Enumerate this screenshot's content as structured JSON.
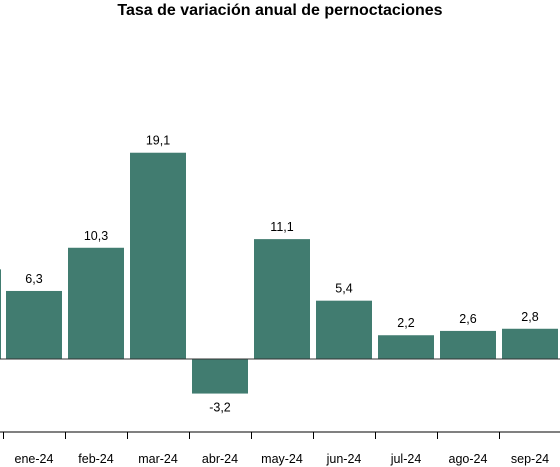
{
  "chart_data": {
    "type": "bar",
    "title": "Tasa de variación anual de pernoctaciones",
    "categories": [
      "ene-24",
      "feb-24",
      "mar-24",
      "abr-24",
      "may-24",
      "jun-24",
      "jul-24",
      "ago-24",
      "sep-24"
    ],
    "values": [
      6.3,
      10.3,
      19.1,
      -3.2,
      11.1,
      5.4,
      2.2,
      2.6,
      2.8
    ],
    "value_labels": [
      "6,3",
      "10,3",
      "19,1",
      "-3,2",
      "11,1",
      "5,4",
      "2,2",
      "2,6",
      "2,8"
    ],
    "previous_period_partial_bar_value": 8.3,
    "bar_color": "#417c70",
    "ylim": [
      -7.5,
      23
    ],
    "grid": false,
    "legend": "none"
  }
}
